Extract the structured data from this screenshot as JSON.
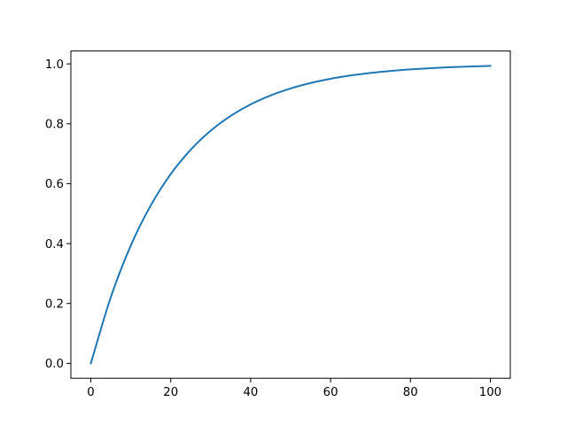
{
  "chart_data": {
    "type": "line",
    "title": "",
    "xlabel": "",
    "ylabel": "",
    "xlim": [
      -5,
      105
    ],
    "ylim": [
      -0.0497,
      1.043
    ],
    "grid": false,
    "x_ticks": [
      "0",
      "20",
      "40",
      "60",
      "80",
      "100"
    ],
    "y_ticks": [
      "0.0",
      "0.2",
      "0.4",
      "0.6",
      "0.8",
      "1.0"
    ],
    "series": [
      {
        "color": "#1f77b4",
        "x": [
          0,
          5,
          10,
          15,
          20,
          25,
          30,
          35,
          40,
          45,
          50,
          55,
          60,
          65,
          70,
          75,
          80,
          85,
          90,
          95,
          100
        ],
        "y": [
          0,
          0.2212,
          0.3935,
          0.5276,
          0.6321,
          0.7135,
          0.7769,
          0.8262,
          0.8647,
          0.8946,
          0.9179,
          0.9361,
          0.9502,
          0.9612,
          0.9698,
          0.9765,
          0.9817,
          0.9857,
          0.9889,
          0.9913,
          0.9933
        ]
      }
    ]
  }
}
